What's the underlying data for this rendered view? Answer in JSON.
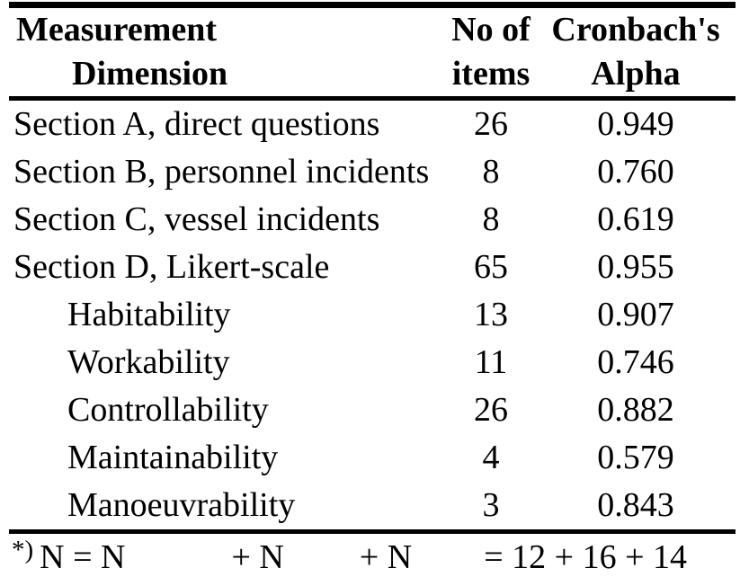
{
  "page": {
    "background": "#ffffff",
    "text_color": "#000000",
    "rule_color": "#000000"
  },
  "table": {
    "header": {
      "dimension_line1": "Measurement",
      "dimension_line2": "Dimension",
      "items_line1": "No of",
      "items_line2": "items",
      "alpha_line1": "Cronbach's",
      "alpha_line2": "Alpha"
    },
    "rows": [
      {
        "dimension": "Section A, direct questions",
        "items": "26",
        "alpha": "0.949",
        "indent": false
      },
      {
        "dimension": "Section B, personnel incidents",
        "items": "8",
        "alpha": "0.760",
        "indent": false
      },
      {
        "dimension": "Section C, vessel incidents",
        "items": "8",
        "alpha": "0.619",
        "indent": false
      },
      {
        "dimension": "Section D, Likert-scale",
        "items": "65",
        "alpha": "0.955",
        "indent": false
      },
      {
        "dimension": "Habitability",
        "items": "13",
        "alpha": "0.907",
        "indent": true
      },
      {
        "dimension": "Workability",
        "items": "11",
        "alpha": "0.746",
        "indent": true
      },
      {
        "dimension": "Controllability",
        "items": "26",
        "alpha": "0.882",
        "indent": true
      },
      {
        "dimension": "Maintainability",
        "items": "4",
        "alpha": "0.579",
        "indent": true
      },
      {
        "dimension": "Manoeuvrability",
        "items": "3",
        "alpha": "0.843",
        "indent": true
      }
    ],
    "footnote": {
      "marker": "*)",
      "part1": "N = N",
      "part2": "+ N",
      "part3": "+ N",
      "part4": "= 12 + 16 + 14"
    }
  },
  "chart_data": {
    "type": "table",
    "title": "",
    "columns": [
      "Measurement Dimension",
      "No of items",
      "Cronbach's Alpha"
    ],
    "rows": [
      [
        "Section A, direct questions",
        26,
        0.949
      ],
      [
        "Section B, personnel incidents",
        8,
        0.76
      ],
      [
        "Section C, vessel incidents",
        8,
        0.619
      ],
      [
        "Section D, Likert-scale",
        65,
        0.955
      ],
      [
        "Habitability",
        13,
        0.907
      ],
      [
        "Workability",
        11,
        0.746
      ],
      [
        "Controllability",
        26,
        0.882
      ],
      [
        "Maintainability",
        4,
        0.579
      ],
      [
        "Manoeuvrability",
        3,
        0.843
      ]
    ],
    "footnote_visible": "*) N = N + N + N = 12 + 16 + 14"
  }
}
